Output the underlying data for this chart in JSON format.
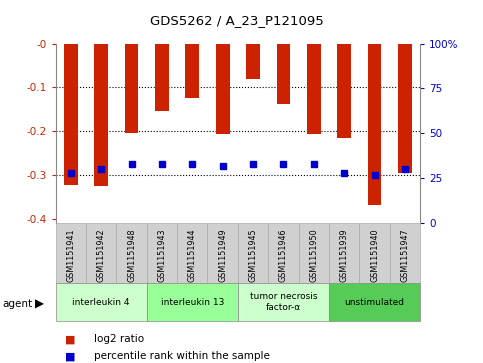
{
  "title": "GDS5262 / A_23_P121095",
  "samples": [
    "GSM1151941",
    "GSM1151942",
    "GSM1151948",
    "GSM1151943",
    "GSM1151944",
    "GSM1151949",
    "GSM1151945",
    "GSM1151946",
    "GSM1151950",
    "GSM1151939",
    "GSM1151940",
    "GSM1151947"
  ],
  "log2_ratio": [
    -0.322,
    -0.325,
    -0.205,
    -0.155,
    -0.125,
    -0.207,
    -0.082,
    -0.138,
    -0.207,
    -0.215,
    -0.368,
    -0.295
  ],
  "percentile_rank": [
    28,
    30,
    33,
    33,
    33,
    32,
    33,
    33,
    33,
    28,
    27,
    30
  ],
  "ylim_left": [
    -0.41,
    0.0
  ],
  "ylim_right": [
    0,
    100
  ],
  "yticks_left": [
    0.0,
    -0.1,
    -0.2,
    -0.3,
    -0.4
  ],
  "yticks_right": [
    0,
    25,
    50,
    75,
    100
  ],
  "ytick_labels_left": [
    "-0",
    "-0.1",
    "-0.2",
    "-0.3",
    "-0.4"
  ],
  "ytick_labels_right": [
    "0",
    "25",
    "50",
    "75",
    "100%"
  ],
  "agents": [
    {
      "label": "interleukin 4",
      "start": 0,
      "end": 3,
      "color": "#ccffcc"
    },
    {
      "label": "interleukin 13",
      "start": 3,
      "end": 6,
      "color": "#99ff99"
    },
    {
      "label": "tumor necrosis\nfactor-α",
      "start": 6,
      "end": 9,
      "color": "#ccffcc"
    },
    {
      "label": "unstimulated",
      "start": 9,
      "end": 12,
      "color": "#55cc55"
    }
  ],
  "bar_color": "#cc2200",
  "marker_color": "#0000cc",
  "grid_color": "#000000",
  "label_color_left": "#cc2200",
  "label_color_right": "#0000cc",
  "agent_label": "agent",
  "legend_log2": "log2 ratio",
  "legend_pct": "percentile rank within the sample",
  "bar_width": 0.45,
  "marker_size": 4
}
